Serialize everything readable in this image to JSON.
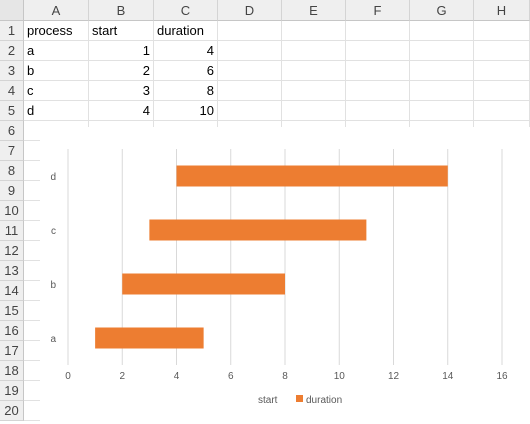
{
  "columns": [
    "A",
    "B",
    "C",
    "D",
    "E",
    "F",
    "G",
    "H"
  ],
  "rows": [
    "1",
    "2",
    "3",
    "4",
    "5",
    "6",
    "7",
    "8",
    "9",
    "10",
    "11",
    "12",
    "13",
    "14",
    "15",
    "16",
    "17",
    "18",
    "19",
    "20"
  ],
  "table": {
    "headers": [
      "process",
      "start",
      "duration"
    ],
    "records": [
      [
        "a",
        "1",
        "4"
      ],
      [
        "b",
        "2",
        "6"
      ],
      [
        "c",
        "3",
        "8"
      ],
      [
        "d",
        "4",
        "10"
      ]
    ]
  },
  "chart_data": {
    "type": "bar",
    "orientation": "horizontal",
    "stacked": true,
    "categories": [
      "a",
      "b",
      "c",
      "d"
    ],
    "series": [
      {
        "name": "start",
        "values": [
          1,
          2,
          3,
          4
        ],
        "color": "none"
      },
      {
        "name": "duration",
        "values": [
          4,
          6,
          8,
          10
        ],
        "color": "#ED7D31"
      }
    ],
    "xlim": [
      0,
      16
    ],
    "xticks": [
      "0",
      "2",
      "4",
      "6",
      "8",
      "10",
      "12",
      "14",
      "16"
    ],
    "grid": "vertical",
    "legend": "bottom",
    "legend_items": [
      {
        "label": "start",
        "swatch": false
      },
      {
        "label": "duration",
        "swatch": true,
        "color": "#ED7D31"
      }
    ]
  }
}
